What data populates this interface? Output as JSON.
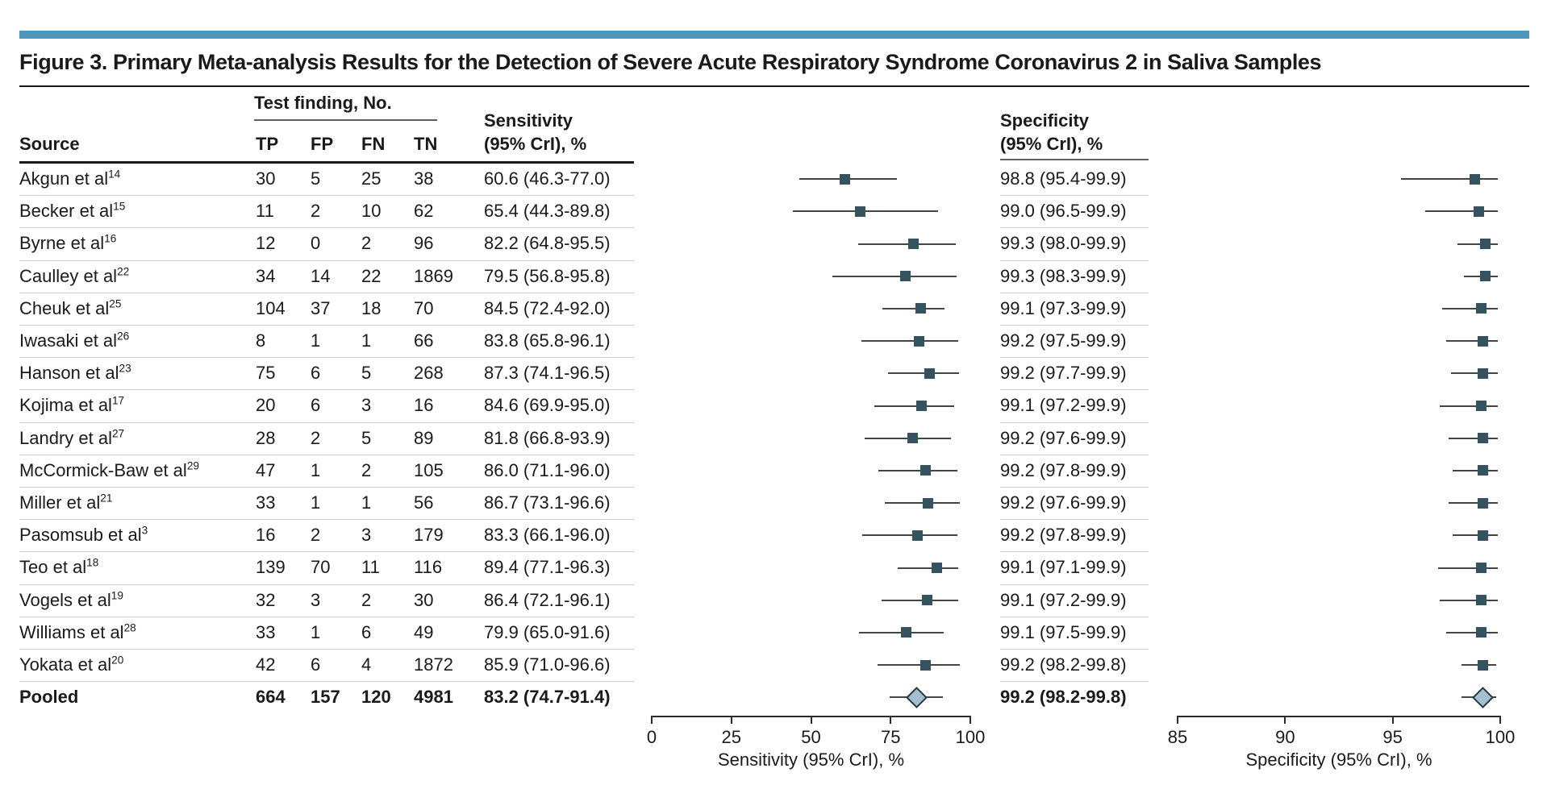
{
  "figure": {
    "title": "Figure 3. Primary Meta-analysis Results for the Detection of Severe Acute Respiratory Syndrome Coronavirus 2 in Saliva Samples",
    "accent_color": "#4e96bd"
  },
  "table": {
    "source_header": "Source",
    "test_finding_header": "Test finding, No.",
    "col_headers": [
      "TP",
      "FP",
      "FN",
      "TN"
    ],
    "sensitivity_header_line1": "Sensitivity",
    "sensitivity_header_line2": "(95% CrI), %",
    "specificity_header_line1": "Specificity",
    "specificity_header_line2": "(95% CrI), %"
  },
  "chart_data": {
    "type": "forest",
    "title": "Figure 3. Primary Meta-analysis Results for the Detection of Severe Acute Respiratory Syndrome Coronavirus 2 in Saliva Samples",
    "rows": [
      {
        "source": "Akgun et al",
        "ref": "14",
        "tp": "30",
        "fp": "5",
        "fn": "25",
        "tn": "38",
        "sens_label": "60.6 (46.3-77.0)",
        "spec_label": "98.8 (95.4-99.9)",
        "sens": {
          "est": 60.6,
          "lo": 46.3,
          "hi": 77.0
        },
        "spec": {
          "est": 98.8,
          "lo": 95.4,
          "hi": 99.9
        },
        "pooled": false
      },
      {
        "source": "Becker et al",
        "ref": "15",
        "tp": "11",
        "fp": "2",
        "fn": "10",
        "tn": "62",
        "sens_label": "65.4 (44.3-89.8)",
        "spec_label": "99.0 (96.5-99.9)",
        "sens": {
          "est": 65.4,
          "lo": 44.3,
          "hi": 89.8
        },
        "spec": {
          "est": 99.0,
          "lo": 96.5,
          "hi": 99.9
        },
        "pooled": false
      },
      {
        "source": "Byrne et al",
        "ref": "16",
        "tp": "12",
        "fp": "0",
        "fn": "2",
        "tn": "96",
        "sens_label": "82.2 (64.8-95.5)",
        "spec_label": "99.3 (98.0-99.9)",
        "sens": {
          "est": 82.2,
          "lo": 64.8,
          "hi": 95.5
        },
        "spec": {
          "est": 99.3,
          "lo": 98.0,
          "hi": 99.9
        },
        "pooled": false
      },
      {
        "source": "Caulley et al",
        "ref": "22",
        "tp": "34",
        "fp": "14",
        "fn": "22",
        "tn": "1869",
        "sens_label": "79.5 (56.8-95.8)",
        "spec_label": "99.3 (98.3-99.9)",
        "sens": {
          "est": 79.5,
          "lo": 56.8,
          "hi": 95.8
        },
        "spec": {
          "est": 99.3,
          "lo": 98.3,
          "hi": 99.9
        },
        "pooled": false
      },
      {
        "source": "Cheuk et al",
        "ref": "25",
        "tp": "104",
        "fp": "37",
        "fn": "18",
        "tn": "70",
        "sens_label": "84.5 (72.4-92.0)",
        "spec_label": "99.1 (97.3-99.9)",
        "sens": {
          "est": 84.5,
          "lo": 72.4,
          "hi": 92.0
        },
        "spec": {
          "est": 99.1,
          "lo": 97.3,
          "hi": 99.9
        },
        "pooled": false
      },
      {
        "source": "Iwasaki et al",
        "ref": "26",
        "tp": "8",
        "fp": "1",
        "fn": "1",
        "tn": "66",
        "sens_label": "83.8 (65.8-96.1)",
        "spec_label": "99.2 (97.5-99.9)",
        "sens": {
          "est": 83.8,
          "lo": 65.8,
          "hi": 96.1
        },
        "spec": {
          "est": 99.2,
          "lo": 97.5,
          "hi": 99.9
        },
        "pooled": false
      },
      {
        "source": "Hanson et al",
        "ref": "23",
        "tp": "75",
        "fp": "6",
        "fn": "5",
        "tn": "268",
        "sens_label": "87.3 (74.1-96.5)",
        "spec_label": "99.2 (97.7-99.9)",
        "sens": {
          "est": 87.3,
          "lo": 74.1,
          "hi": 96.5
        },
        "spec": {
          "est": 99.2,
          "lo": 97.7,
          "hi": 99.9
        },
        "pooled": false
      },
      {
        "source": "Kojima et al",
        "ref": "17",
        "tp": "20",
        "fp": "6",
        "fn": "3",
        "tn": "16",
        "sens_label": "84.6 (69.9-95.0)",
        "spec_label": "99.1 (97.2-99.9)",
        "sens": {
          "est": 84.6,
          "lo": 69.9,
          "hi": 95.0
        },
        "spec": {
          "est": 99.1,
          "lo": 97.2,
          "hi": 99.9
        },
        "pooled": false
      },
      {
        "source": "Landry et al",
        "ref": "27",
        "tp": "28",
        "fp": "2",
        "fn": "5",
        "tn": "89",
        "sens_label": "81.8 (66.8-93.9)",
        "spec_label": "99.2 (97.6-99.9)",
        "sens": {
          "est": 81.8,
          "lo": 66.8,
          "hi": 93.9
        },
        "spec": {
          "est": 99.2,
          "lo": 97.6,
          "hi": 99.9
        },
        "pooled": false
      },
      {
        "source": "McCormick-Baw et al",
        "ref": "29",
        "tp": "47",
        "fp": "1",
        "fn": "2",
        "tn": "105",
        "sens_label": "86.0 (71.1-96.0)",
        "spec_label": "99.2 (97.8-99.9)",
        "sens": {
          "est": 86.0,
          "lo": 71.1,
          "hi": 96.0
        },
        "spec": {
          "est": 99.2,
          "lo": 97.8,
          "hi": 99.9
        },
        "pooled": false
      },
      {
        "source": "Miller et al",
        "ref": "21",
        "tp": "33",
        "fp": "1",
        "fn": "1",
        "tn": "56",
        "sens_label": "86.7 (73.1-96.6)",
        "spec_label": "99.2 (97.6-99.9)",
        "sens": {
          "est": 86.7,
          "lo": 73.1,
          "hi": 96.6
        },
        "spec": {
          "est": 99.2,
          "lo": 97.6,
          "hi": 99.9
        },
        "pooled": false
      },
      {
        "source": "Pasomsub et al",
        "ref": "3",
        "tp": "16",
        "fp": "2",
        "fn": "3",
        "tn": "179",
        "sens_label": "83.3 (66.1-96.0)",
        "spec_label": "99.2 (97.8-99.9)",
        "sens": {
          "est": 83.3,
          "lo": 66.1,
          "hi": 96.0
        },
        "spec": {
          "est": 99.2,
          "lo": 97.8,
          "hi": 99.9
        },
        "pooled": false
      },
      {
        "source": "Teo et al",
        "ref": "18",
        "tp": "139",
        "fp": "70",
        "fn": "11",
        "tn": "116",
        "sens_label": "89.4 (77.1-96.3)",
        "spec_label": "99.1 (97.1-99.9)",
        "sens": {
          "est": 89.4,
          "lo": 77.1,
          "hi": 96.3
        },
        "spec": {
          "est": 99.1,
          "lo": 97.1,
          "hi": 99.9
        },
        "pooled": false
      },
      {
        "source": "Vogels et al",
        "ref": "19",
        "tp": "32",
        "fp": "3",
        "fn": "2",
        "tn": "30",
        "sens_label": "86.4 (72.1-96.1)",
        "spec_label": "99.1 (97.2-99.9)",
        "sens": {
          "est": 86.4,
          "lo": 72.1,
          "hi": 96.1
        },
        "spec": {
          "est": 99.1,
          "lo": 97.2,
          "hi": 99.9
        },
        "pooled": false
      },
      {
        "source": "Williams et al",
        "ref": "28",
        "tp": "33",
        "fp": "1",
        "fn": "6",
        "tn": "49",
        "sens_label": "79.9 (65.0-91.6)",
        "spec_label": "99.1 (97.5-99.9)",
        "sens": {
          "est": 79.9,
          "lo": 65.0,
          "hi": 91.6
        },
        "spec": {
          "est": 99.1,
          "lo": 97.5,
          "hi": 99.9
        },
        "pooled": false
      },
      {
        "source": "Yokata et al",
        "ref": "20",
        "tp": "42",
        "fp": "6",
        "fn": "4",
        "tn": "1872",
        "sens_label": "85.9 (71.0-96.6)",
        "spec_label": "99.2 (98.2-99.8)",
        "sens": {
          "est": 85.9,
          "lo": 71.0,
          "hi": 96.6
        },
        "spec": {
          "est": 99.2,
          "lo": 98.2,
          "hi": 99.8
        },
        "pooled": false
      },
      {
        "source": "Pooled",
        "ref": "",
        "tp": "664",
        "fp": "157",
        "fn": "120",
        "tn": "4981",
        "sens_label": "83.2 (74.7-91.4)",
        "spec_label": "99.2 (98.2-99.8)",
        "sens": {
          "est": 83.2,
          "lo": 74.7,
          "hi": 91.4
        },
        "spec": {
          "est": 99.2,
          "lo": 98.2,
          "hi": 99.8
        },
        "pooled": true
      }
    ],
    "sensitivity_axis": {
      "label": "Sensitivity (95% CrI), %",
      "range": [
        0,
        100
      ],
      "ticks": [
        0,
        25,
        50,
        75,
        100
      ],
      "grid": false
    },
    "specificity_axis": {
      "label": "Specificity (95% CrI), %",
      "range": [
        85,
        100
      ],
      "ticks": [
        85,
        90,
        95,
        100
      ],
      "grid": false
    },
    "colors": {
      "marker": "#35535f",
      "diamond_fill": "#a4bfcd",
      "diamond_border": "#2b3840",
      "ci_line": "#444444",
      "axis": "#2b2b2b",
      "separator": "#cfcfcf"
    }
  }
}
